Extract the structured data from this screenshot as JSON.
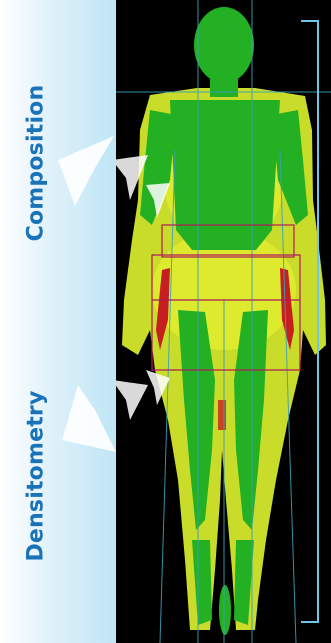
{
  "labels": {
    "top": "Composition",
    "bottom": "Densitometry"
  },
  "colors": {
    "label_text": "#1a73b8",
    "panel_light": "#ffffff",
    "panel_blue": "#bfe5f5",
    "lean_tissue": "#2fbf2a",
    "fat_tissue": "#d7e62c",
    "high_fat": "#c61f1f",
    "guide_lines": "#3aa0b8",
    "region_box": "#b0195a"
  },
  "icons": [
    "chevron-arrow-icon"
  ]
}
